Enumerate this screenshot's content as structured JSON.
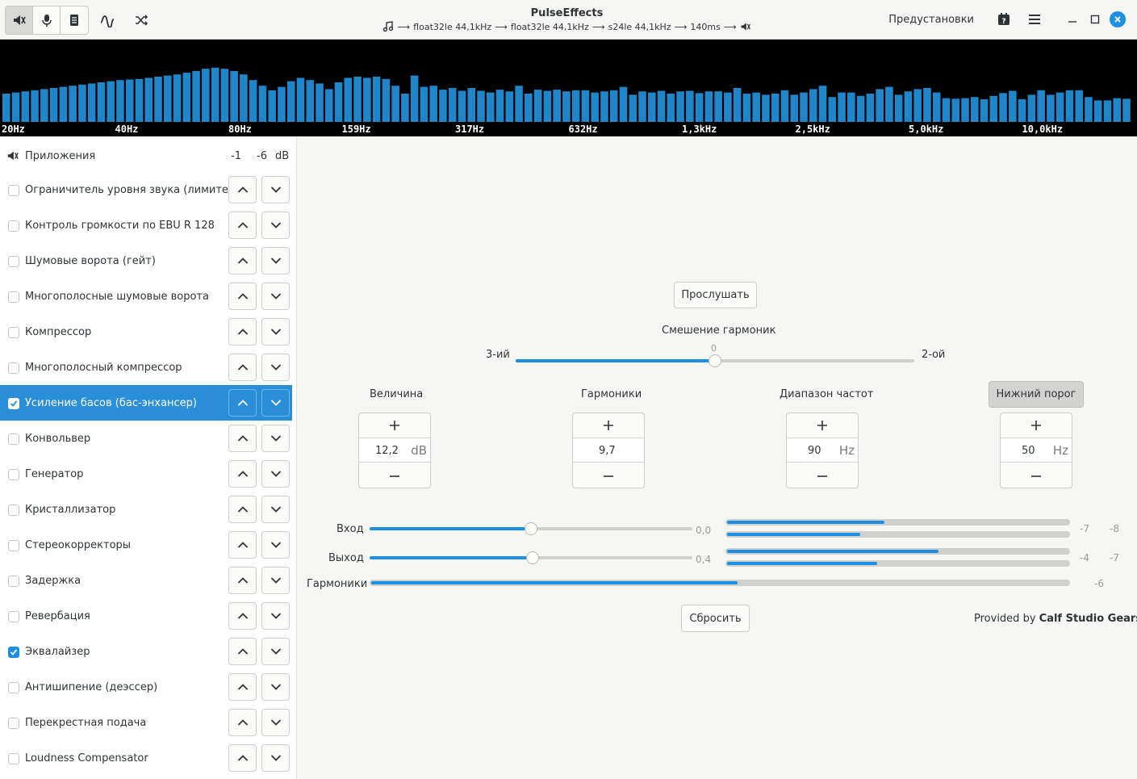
{
  "window": {
    "title": "PulseEffects",
    "pipeline": [
      "float32le 44,1kHz",
      "float32le 44,1kHz",
      "s24le 44,1kHz",
      "140ms"
    ],
    "presets_label": "Предустановки"
  },
  "spectrum": {
    "labels": [
      "20Hz",
      "40Hz",
      "80Hz",
      "159Hz",
      "317Hz",
      "632Hz",
      "1,3kHz",
      "2,5kHz",
      "5,0kHz",
      "10,0kHz"
    ],
    "levels": [
      0.5,
      0.52,
      0.54,
      0.56,
      0.58,
      0.6,
      0.62,
      0.64,
      0.66,
      0.68,
      0.7,
      0.72,
      0.74,
      0.75,
      0.76,
      0.78,
      0.8,
      0.82,
      0.84,
      0.87,
      0.9,
      0.94,
      0.96,
      0.94,
      0.9,
      0.84,
      0.74,
      0.64,
      0.56,
      0.62,
      0.72,
      0.78,
      0.74,
      0.68,
      0.58,
      0.7,
      0.78,
      0.8,
      0.78,
      0.8,
      0.76,
      0.64,
      0.5,
      0.82,
      0.62,
      0.64,
      0.57,
      0.6,
      0.55,
      0.6,
      0.55,
      0.52,
      0.57,
      0.54,
      0.64,
      0.5,
      0.57,
      0.55,
      0.57,
      0.54,
      0.56,
      0.56,
      0.52,
      0.54,
      0.56,
      0.62,
      0.48,
      0.54,
      0.52,
      0.55,
      0.5,
      0.54,
      0.55,
      0.51,
      0.54,
      0.54,
      0.52,
      0.6,
      0.5,
      0.52,
      0.48,
      0.5,
      0.56,
      0.48,
      0.52,
      0.58,
      0.64,
      0.44,
      0.52,
      0.52,
      0.46,
      0.5,
      0.58,
      0.62,
      0.48,
      0.54,
      0.58,
      0.6,
      0.52,
      0.42,
      0.41,
      0.42,
      0.44,
      0.4,
      0.46,
      0.51,
      0.55,
      0.4,
      0.48,
      0.56,
      0.48,
      0.52,
      0.56,
      0.56,
      0.44,
      0.38,
      0.38,
      0.42,
      0.41
    ]
  },
  "sidebar": {
    "apps_label": "Приложения",
    "apps_values": [
      "-1",
      "-6",
      "dB"
    ],
    "plugins": [
      {
        "name": "Ограничитель уровня звука (лимитер)",
        "checked": false,
        "selected": false
      },
      {
        "name": "Контроль громкости по EBU R 128",
        "checked": false,
        "selected": false
      },
      {
        "name": "Шумовые ворота (гейт)",
        "checked": false,
        "selected": false
      },
      {
        "name": "Многополосные шумовые ворота",
        "checked": false,
        "selected": false
      },
      {
        "name": "Компрессор",
        "checked": false,
        "selected": false
      },
      {
        "name": "Многополосный компрессор",
        "checked": false,
        "selected": false
      },
      {
        "name": "Усиление басов (бас-энхансер)",
        "checked": true,
        "selected": true
      },
      {
        "name": "Конвольвер",
        "checked": false,
        "selected": false
      },
      {
        "name": "Генератор",
        "checked": false,
        "selected": false
      },
      {
        "name": "Кристаллизатор",
        "checked": false,
        "selected": false
      },
      {
        "name": "Стереокорректоры",
        "checked": false,
        "selected": false
      },
      {
        "name": "Задержка",
        "checked": false,
        "selected": false
      },
      {
        "name": "Ревербация",
        "checked": false,
        "selected": false
      },
      {
        "name": "Эквалайзер",
        "checked": true,
        "selected": false
      },
      {
        "name": "Антишипение (деэссер)",
        "checked": false,
        "selected": false
      },
      {
        "name": "Перекрестная подача",
        "checked": false,
        "selected": false
      },
      {
        "name": "Loudness Compensator",
        "checked": false,
        "selected": false
      }
    ]
  },
  "main": {
    "listen_button": "Прослушать",
    "blend": {
      "label": "Смешение гармоник",
      "left": "3-ий",
      "right": "2-ой",
      "value": "0",
      "fraction": 0.5
    },
    "amount": {
      "label": "Величина",
      "value": "12,2",
      "unit": "dB"
    },
    "harmonics": {
      "label": "Гармоники",
      "value": "9,7",
      "unit": ""
    },
    "scope": {
      "label": "Диапазон частот",
      "value": "90",
      "unit": "Hz"
    },
    "floor": {
      "label": "Нижний порог",
      "value": "50",
      "unit": "Hz"
    },
    "input": {
      "label": "Вход",
      "value": "0,0",
      "fraction": 0.5,
      "meters": [
        0.46,
        0.39
      ],
      "readings": [
        "-7",
        "-8"
      ]
    },
    "output": {
      "label": "Выход",
      "value": "0,4",
      "fraction": 0.505,
      "meters": [
        0.62,
        0.44
      ],
      "readings": [
        "-4",
        "-7"
      ]
    },
    "harmonics_meter": {
      "label": "Гармоники",
      "fraction": 0.525,
      "reading": "-6"
    },
    "reset_button": "Сбросить",
    "provided_by": "Provided by",
    "provider": "Calf Studio Gears"
  }
}
